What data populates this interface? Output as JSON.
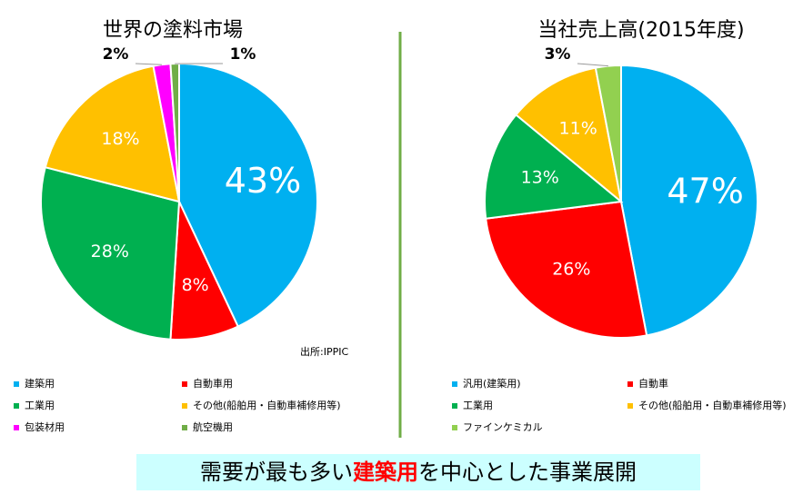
{
  "chart_data": [
    {
      "type": "pie",
      "title": "世界の塗料市場",
      "categories": [
        "建築用",
        "自動車用",
        "工業用",
        "その他(船舶用・自動車補修用等)",
        "包装材用",
        "航空機用"
      ],
      "values": [
        43,
        8,
        28,
        18,
        2,
        1
      ],
      "value_labels": [
        "43%",
        "8%",
        "28%",
        "18%",
        "2%",
        "1%"
      ],
      "colors": [
        "#00b0f0",
        "#ff0000",
        "#00b050",
        "#ffc000",
        "#ff00ff",
        "#70ad47"
      ],
      "source": "出所:IPPIC"
    },
    {
      "type": "pie",
      "title": "当社売上高(2015年度)",
      "categories": [
        "汎用(建築用)",
        "自動車",
        "工業用",
        "その他(船舶用・自動車補修用等)",
        "ファインケミカル"
      ],
      "values": [
        47,
        26,
        13,
        11,
        3
      ],
      "value_labels": [
        "47%",
        "26%",
        "13%",
        "11%",
        "3%"
      ],
      "colors": [
        "#00b0f0",
        "#ff0000",
        "#00b050",
        "#ffc000",
        "#92d050"
      ]
    }
  ],
  "banner": [
    "需要が最も多い",
    "建築用",
    "を中心とした事業展開"
  ]
}
